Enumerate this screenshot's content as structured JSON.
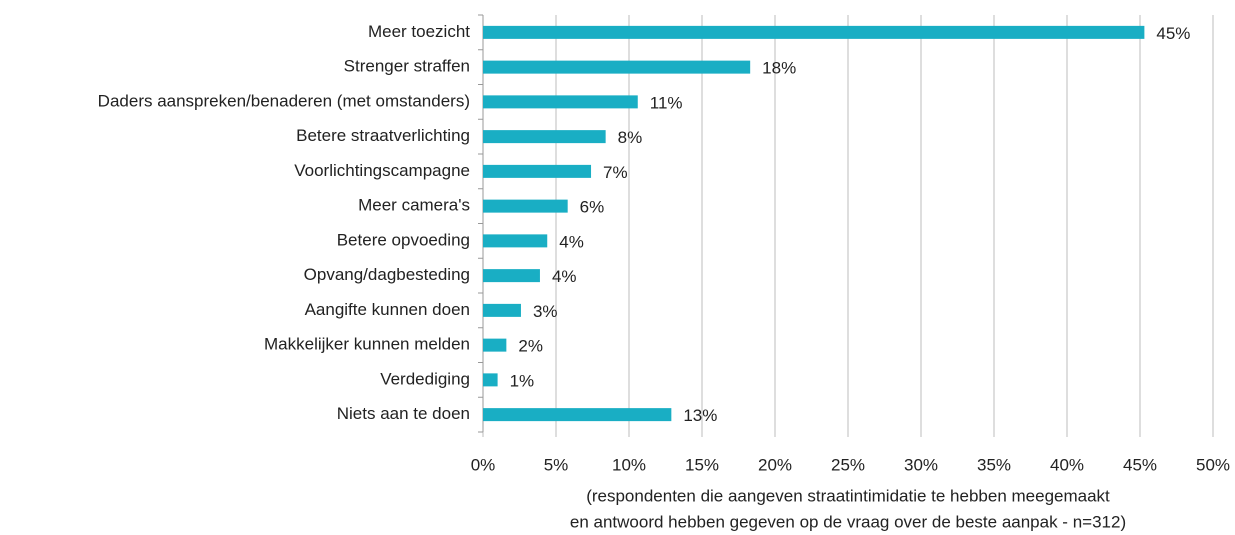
{
  "chart_data": {
    "type": "barh",
    "categories": [
      "Meer toezicht",
      "Strenger straffen",
      "Daders aanspreken/benaderen (met omstanders)",
      "Betere straatverlichting",
      "Voorlichtingscampagne",
      "Meer camera's",
      "Betere opvoeding",
      "Opvang/dagbesteding",
      "Aangifte kunnen doen",
      "Makkelijker kunnen melden",
      "Verdediging",
      "Niets aan te doen"
    ],
    "values": [
      45.3,
      18.3,
      10.6,
      8.4,
      7.4,
      5.8,
      4.4,
      3.9,
      2.6,
      1.6,
      1.0,
      12.9
    ],
    "value_labels": [
      "45%",
      "18%",
      "11%",
      "8%",
      "7%",
      "6%",
      "4%",
      "4%",
      "3%",
      "2%",
      "1%",
      "13%"
    ],
    "color": "#19aec4",
    "xlim": [
      0,
      50
    ],
    "xticks": [
      {
        "value": 0,
        "label": "0%"
      },
      {
        "value": 5,
        "label": "5%"
      },
      {
        "value": 10,
        "label": "10%"
      },
      {
        "value": 15,
        "label": "15%"
      },
      {
        "value": 20,
        "label": "20%"
      },
      {
        "value": 25,
        "label": "25%"
      },
      {
        "value": 30,
        "label": "30%"
      },
      {
        "value": 35,
        "label": "35%"
      },
      {
        "value": 40,
        "label": "40%"
      },
      {
        "value": 45,
        "label": "45%"
      },
      {
        "value": 50,
        "label": "50%"
      }
    ],
    "xlabel": [
      "(respondenten die aangeven straatintimidatie te hebben meegemaakt",
      "en antwoord hebben gegeven op de vraag over de beste aanpak - n=312)"
    ],
    "grid": true
  }
}
